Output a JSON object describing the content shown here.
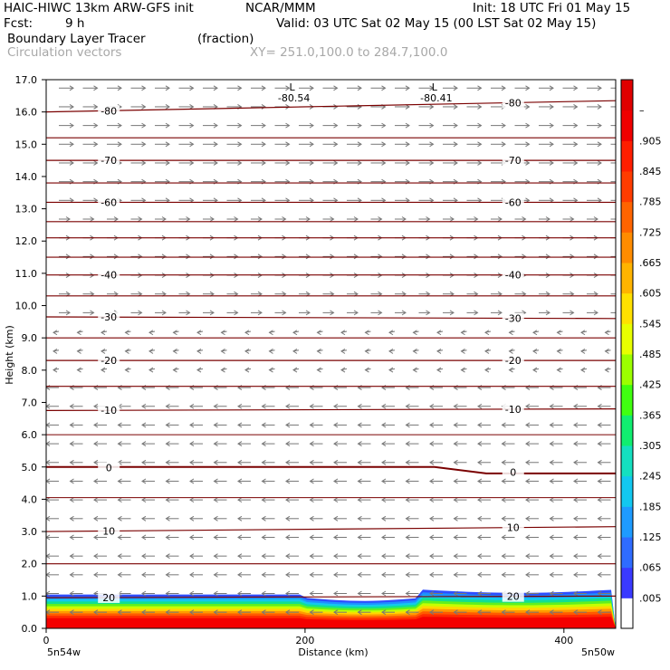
{
  "header": {
    "model": "HAIC-HIWC 13km ARW-GFS init",
    "org": "NCAR/MMM",
    "init": "Init: 18 UTC Fri 01 May 15",
    "fcst_label": "Fcst:",
    "fcst_value": "9 h",
    "valid": "Valid: 03 UTC Sat 02 May 15 (00 LST Sat 02 May 15)",
    "field": "Boundary Layer Tracer",
    "units": "(fraction)",
    "overlay": "Circulation vectors",
    "xy": "XY= 251.0,100.0 to 284.7,100.0"
  },
  "chart_data": {
    "type": "heatmap",
    "ylabel": "Height (km)",
    "xlabel": "Distance (km)",
    "ylim": [
      0,
      17
    ],
    "xlim": [
      0,
      440
    ],
    "yticks": [
      "0.0",
      "1.0",
      "2.0",
      "3.0",
      "4.0",
      "5.0",
      "6.0",
      "7.0",
      "8.0",
      "9.0",
      "10.0",
      "11.0",
      "12.0",
      "13.0",
      "14.0",
      "15.0",
      "16.0",
      "17.0"
    ],
    "xticks": [
      "0",
      "200",
      "400"
    ],
    "x_end_labels": [
      "5n54w",
      "5n50w"
    ],
    "colorbar_labels": [
      ".005",
      ".065",
      ".125",
      ".185",
      ".245",
      ".305",
      ".365",
      ".425",
      ".485",
      ".545",
      ".605",
      ".665",
      ".725",
      ".785",
      ".845",
      ".905",
      "–"
    ],
    "colors": {
      "contour": "#7a0000",
      "vector": "#777777",
      "colorbar": [
        "#ffffff",
        "#3a3aff",
        "#2f6cff",
        "#1e9bff",
        "#12c8f0",
        "#14e0c0",
        "#10ee70",
        "#40ff10",
        "#9cff00",
        "#e8ff00",
        "#ffe100",
        "#ffb400",
        "#ff8c00",
        "#ff6400",
        "#ff3c00",
        "#ff1e00",
        "#f00000",
        "#e00000"
      ]
    },
    "contours": [
      {
        "label": "-80",
        "values_km": [
          16.0,
          16.35
        ]
      },
      {
        "label": "-70",
        "values_km": [
          14.5,
          14.5
        ]
      },
      {
        "label": "-60",
        "values_km": [
          13.2,
          13.2
        ]
      },
      {
        "label": "-40",
        "values_km": [
          10.95,
          10.95
        ]
      },
      {
        "label": "-30",
        "values_km": [
          9.65,
          9.6
        ]
      },
      {
        "label": "-20",
        "values_km": [
          8.3,
          8.3
        ]
      },
      {
        "label": "-10",
        "values_km": [
          6.75,
          6.8
        ]
      },
      {
        "label": "0",
        "values_km": [
          5.0,
          4.8
        ]
      },
      {
        "label": "10",
        "values_km": [
          3.0,
          3.15
        ]
      },
      {
        "label": "20",
        "values_km": [
          0.95,
          1.0
        ]
      }
    ],
    "extra_lines_km": [
      2.0,
      4.05,
      6.0,
      7.5,
      9.0,
      10.3,
      11.5,
      12.1,
      12.6,
      13.8,
      15.2
    ],
    "lows": [
      {
        "label": "L",
        "value": "-80.54",
        "x_km": 190
      },
      {
        "label": "L",
        "value": "-80.41",
        "x_km": 300
      }
    ]
  }
}
